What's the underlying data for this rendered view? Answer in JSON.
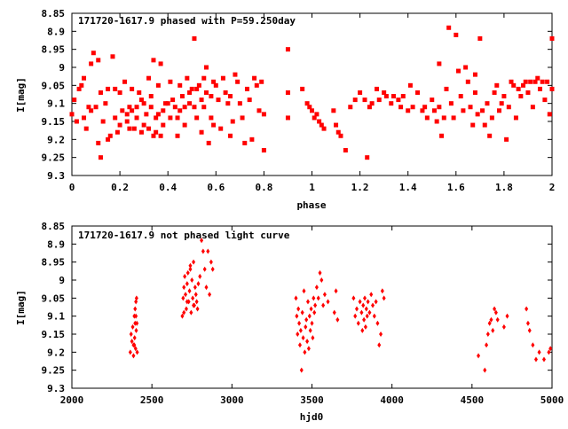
{
  "chart_data": [
    {
      "type": "scatter",
      "title": "171720-1617.9 phased with P=59.250day",
      "xlabel": "phase",
      "ylabel": "I[mag]",
      "xlim": [
        0,
        2
      ],
      "ylim": [
        8.85,
        9.3
      ],
      "y_inverted": true,
      "xticks": [
        "0",
        "0.2",
        "0.4",
        "0.6",
        "0.8",
        "1",
        "1.2",
        "1.4",
        "1.6",
        "1.8",
        "2"
      ],
      "yticks": [
        "8.85",
        "8.9",
        "8.95",
        "9",
        "9.05",
        "9.1",
        "9.15",
        "9.2",
        "9.25",
        "9.3"
      ],
      "marker_color": "#ff0000",
      "grid": false,
      "points": [
        [
          0.0,
          9.13
        ],
        [
          0.01,
          9.09
        ],
        [
          0.02,
          9.15
        ],
        [
          0.03,
          9.06
        ],
        [
          0.04,
          9.05
        ],
        [
          0.05,
          9.03
        ],
        [
          0.05,
          9.14
        ],
        [
          0.06,
          9.17
        ],
        [
          0.07,
          9.11
        ],
        [
          0.08,
          8.99
        ],
        [
          0.08,
          9.12
        ],
        [
          0.09,
          8.96
        ],
        [
          0.1,
          9.11
        ],
        [
          0.11,
          9.21
        ],
        [
          0.11,
          8.98
        ],
        [
          0.12,
          9.07
        ],
        [
          0.12,
          9.25
        ],
        [
          0.13,
          9.15
        ],
        [
          0.14,
          9.1
        ],
        [
          0.15,
          9.06
        ],
        [
          0.15,
          9.2
        ],
        [
          0.16,
          9.19
        ],
        [
          0.17,
          8.97
        ],
        [
          0.18,
          9.14
        ],
        [
          0.18,
          9.06
        ],
        [
          0.19,
          9.18
        ],
        [
          0.2,
          9.07
        ],
        [
          0.2,
          9.16
        ],
        [
          0.21,
          9.12
        ],
        [
          0.22,
          9.04
        ],
        [
          0.23,
          9.15
        ],
        [
          0.23,
          9.13
        ],
        [
          0.24,
          9.11
        ],
        [
          0.24,
          9.17
        ],
        [
          0.25,
          9.12
        ],
        [
          0.25,
          9.06
        ],
        [
          0.26,
          9.17
        ],
        [
          0.27,
          9.11
        ],
        [
          0.27,
          9.14
        ],
        [
          0.28,
          9.07
        ],
        [
          0.29,
          9.18
        ],
        [
          0.29,
          9.09
        ],
        [
          0.3,
          9.1
        ],
        [
          0.3,
          9.16
        ],
        [
          0.31,
          9.13
        ],
        [
          0.32,
          9.17
        ],
        [
          0.32,
          9.03
        ],
        [
          0.33,
          9.11
        ],
        [
          0.33,
          9.08
        ],
        [
          0.34,
          9.19
        ],
        [
          0.34,
          8.98
        ],
        [
          0.35,
          9.14
        ],
        [
          0.35,
          9.18
        ],
        [
          0.36,
          9.13
        ],
        [
          0.36,
          9.05
        ],
        [
          0.37,
          9.19
        ],
        [
          0.37,
          8.99
        ],
        [
          0.38,
          9.16
        ],
        [
          0.38,
          9.12
        ],
        [
          0.39,
          9.1
        ],
        [
          0.4,
          9.1
        ],
        [
          0.41,
          9.14
        ],
        [
          0.41,
          9.04
        ],
        [
          0.42,
          9.09
        ],
        [
          0.43,
          9.11
        ],
        [
          0.44,
          9.19
        ],
        [
          0.44,
          9.14
        ],
        [
          0.45,
          9.05
        ],
        [
          0.45,
          9.12
        ],
        [
          0.46,
          9.08
        ],
        [
          0.47,
          9.11
        ],
        [
          0.47,
          9.16
        ],
        [
          0.48,
          9.03
        ],
        [
          0.49,
          9.1
        ],
        [
          0.49,
          9.07
        ],
        [
          0.5,
          9.06
        ],
        [
          0.51,
          9.11
        ],
        [
          0.51,
          8.92
        ],
        [
          0.52,
          9.06
        ],
        [
          0.52,
          9.14
        ],
        [
          0.53,
          9.05
        ],
        [
          0.54,
          9.18
        ],
        [
          0.54,
          9.09
        ],
        [
          0.55,
          9.11
        ],
        [
          0.55,
          9.03
        ],
        [
          0.56,
          9.07
        ],
        [
          0.56,
          9.0
        ],
        [
          0.57,
          9.21
        ],
        [
          0.58,
          9.08
        ],
        [
          0.58,
          9.14
        ],
        [
          0.59,
          9.04
        ],
        [
          0.59,
          9.16
        ],
        [
          0.6,
          9.05
        ],
        [
          0.61,
          9.09
        ],
        [
          0.62,
          9.17
        ],
        [
          0.63,
          9.03
        ],
        [
          0.64,
          9.07
        ],
        [
          0.65,
          9.1
        ],
        [
          0.66,
          9.08
        ],
        [
          0.66,
          9.19
        ],
        [
          0.67,
          9.15
        ],
        [
          0.68,
          9.02
        ],
        [
          0.69,
          9.04
        ],
        [
          0.7,
          9.1
        ],
        [
          0.71,
          9.14
        ],
        [
          0.72,
          9.21
        ],
        [
          0.73,
          9.06
        ],
        [
          0.74,
          9.09
        ],
        [
          0.75,
          9.2
        ],
        [
          0.76,
          9.03
        ],
        [
          0.77,
          9.05
        ],
        [
          0.78,
          9.12
        ],
        [
          0.79,
          9.04
        ],
        [
          0.8,
          9.23
        ],
        [
          0.8,
          9.13
        ],
        [
          0.9,
          8.95
        ],
        [
          0.9,
          9.07
        ],
        [
          0.9,
          9.14
        ],
        [
          0.96,
          9.06
        ],
        [
          0.98,
          9.1
        ],
        [
          0.99,
          9.11
        ],
        [
          1.0,
          9.12
        ],
        [
          1.01,
          9.14
        ],
        [
          1.02,
          9.13
        ],
        [
          1.03,
          9.15
        ],
        [
          1.04,
          9.16
        ],
        [
          1.05,
          9.17
        ],
        [
          1.09,
          9.12
        ],
        [
          1.1,
          9.16
        ],
        [
          1.11,
          9.18
        ],
        [
          1.12,
          9.19
        ],
        [
          1.14,
          9.23
        ],
        [
          1.16,
          9.11
        ],
        [
          1.18,
          9.09
        ],
        [
          1.2,
          9.07
        ],
        [
          1.22,
          9.09
        ],
        [
          1.23,
          9.25
        ],
        [
          1.24,
          9.11
        ],
        [
          1.25,
          9.1
        ],
        [
          1.27,
          9.06
        ],
        [
          1.28,
          9.09
        ],
        [
          1.3,
          9.07
        ],
        [
          1.31,
          9.08
        ],
        [
          1.33,
          9.1
        ],
        [
          1.34,
          9.08
        ],
        [
          1.36,
          9.09
        ],
        [
          1.37,
          9.11
        ],
        [
          1.38,
          9.08
        ],
        [
          1.4,
          9.12
        ],
        [
          1.41,
          9.05
        ],
        [
          1.42,
          9.11
        ],
        [
          1.44,
          9.07
        ],
        [
          1.46,
          9.12
        ],
        [
          1.47,
          9.11
        ],
        [
          1.48,
          9.14
        ],
        [
          1.5,
          9.09
        ],
        [
          1.51,
          9.12
        ],
        [
          1.52,
          9.15
        ],
        [
          1.53,
          9.11
        ],
        [
          1.53,
          8.99
        ],
        [
          1.54,
          9.19
        ],
        [
          1.55,
          9.14
        ],
        [
          1.56,
          9.06
        ],
        [
          1.57,
          8.89
        ],
        [
          1.58,
          9.1
        ],
        [
          1.59,
          9.14
        ],
        [
          1.6,
          8.91
        ],
        [
          1.61,
          9.01
        ],
        [
          1.62,
          9.08
        ],
        [
          1.63,
          9.12
        ],
        [
          1.64,
          9.0
        ],
        [
          1.65,
          9.04
        ],
        [
          1.66,
          9.11
        ],
        [
          1.67,
          9.16
        ],
        [
          1.68,
          9.07
        ],
        [
          1.68,
          9.02
        ],
        [
          1.69,
          9.13
        ],
        [
          1.7,
          8.92
        ],
        [
          1.71,
          9.12
        ],
        [
          1.72,
          9.16
        ],
        [
          1.73,
          9.1
        ],
        [
          1.74,
          9.19
        ],
        [
          1.75,
          9.14
        ],
        [
          1.76,
          9.07
        ],
        [
          1.77,
          9.05
        ],
        [
          1.78,
          9.12
        ],
        [
          1.79,
          9.1
        ],
        [
          1.8,
          9.08
        ],
        [
          1.81,
          9.2
        ],
        [
          1.82,
          9.11
        ],
        [
          1.83,
          9.04
        ],
        [
          1.84,
          9.05
        ],
        [
          1.85,
          9.14
        ],
        [
          1.86,
          9.06
        ],
        [
          1.87,
          9.08
        ],
        [
          1.88,
          9.05
        ],
        [
          1.89,
          9.04
        ],
        [
          1.9,
          9.07
        ],
        [
          1.91,
          9.04
        ],
        [
          1.92,
          9.11
        ],
        [
          1.93,
          9.04
        ],
        [
          1.94,
          9.03
        ],
        [
          1.95,
          9.06
        ],
        [
          1.96,
          9.04
        ],
        [
          1.97,
          9.09
        ],
        [
          1.98,
          9.04
        ],
        [
          1.99,
          9.13
        ],
        [
          2.0,
          8.92
        ],
        [
          2.0,
          9.06
        ]
      ]
    },
    {
      "type": "scatter",
      "title": "171720-1617.9 not phased light curve",
      "xlabel": "hjd0",
      "ylabel": "I[mag]",
      "xlim": [
        2000,
        5000
      ],
      "ylim": [
        8.85,
        9.3
      ],
      "y_inverted": true,
      "xticks": [
        "2000",
        "2500",
        "3000",
        "3500",
        "4000",
        "4500",
        "5000"
      ],
      "yticks": [
        "8.85",
        "8.9",
        "8.95",
        "9",
        "9.05",
        "9.1",
        "9.15",
        "9.2",
        "9.25",
        "9.3"
      ],
      "marker_color": "#ff0000",
      "grid": false,
      "points": [
        [
          2365,
          9.2
        ],
        [
          2370,
          9.15
        ],
        [
          2375,
          9.17
        ],
        [
          2380,
          9.13
        ],
        [
          2385,
          9.18
        ],
        [
          2390,
          9.1
        ],
        [
          2392,
          9.16
        ],
        [
          2395,
          9.08
        ],
        [
          2398,
          9.19
        ],
        [
          2400,
          9.06
        ],
        [
          2402,
          9.14
        ],
        [
          2404,
          9.05
        ],
        [
          2406,
          9.12
        ],
        [
          2408,
          9.2
        ],
        [
          2385,
          9.21
        ],
        [
          2390,
          9.18
        ],
        [
          2395,
          9.12
        ],
        [
          2400,
          9.1
        ],
        [
          2690,
          9.1
        ],
        [
          2695,
          9.05
        ],
        [
          2700,
          9.02
        ],
        [
          2705,
          8.99
        ],
        [
          2710,
          9.04
        ],
        [
          2715,
          9.08
        ],
        [
          2720,
          9.01
        ],
        [
          2725,
          8.98
        ],
        [
          2730,
          9.06
        ],
        [
          2735,
          9.03
        ],
        [
          2740,
          8.96
        ],
        [
          2745,
          9.09
        ],
        [
          2750,
          9.0
        ],
        [
          2755,
          9.05
        ],
        [
          2760,
          8.95
        ],
        [
          2765,
          9.07
        ],
        [
          2770,
          9.02
        ],
        [
          2775,
          9.04
        ],
        [
          2780,
          9.06
        ],
        [
          2785,
          9.08
        ],
        [
          2790,
          9.01
        ],
        [
          2800,
          8.99
        ],
        [
          2810,
          8.89
        ],
        [
          2820,
          8.92
        ],
        [
          2830,
          8.97
        ],
        [
          2840,
          9.02
        ],
        [
          2850,
          8.92
        ],
        [
          2860,
          9.04
        ],
        [
          2870,
          8.95
        ],
        [
          2880,
          8.97
        ],
        [
          2700,
          9.09
        ],
        [
          2720,
          9.06
        ],
        [
          2740,
          8.97
        ],
        [
          2760,
          9.07
        ],
        [
          3400,
          9.05
        ],
        [
          3405,
          9.1
        ],
        [
          3410,
          9.15
        ],
        [
          3415,
          9.08
        ],
        [
          3420,
          9.12
        ],
        [
          3425,
          9.18
        ],
        [
          3430,
          9.14
        ],
        [
          3435,
          9.25
        ],
        [
          3440,
          9.09
        ],
        [
          3445,
          9.16
        ],
        [
          3450,
          9.03
        ],
        [
          3455,
          9.2
        ],
        [
          3460,
          9.13
        ],
        [
          3465,
          9.11
        ],
        [
          3470,
          9.17
        ],
        [
          3475,
          9.06
        ],
        [
          3480,
          9.19
        ],
        [
          3485,
          9.1
        ],
        [
          3490,
          9.14
        ],
        [
          3495,
          9.08
        ],
        [
          3500,
          9.12
        ],
        [
          3505,
          9.16
        ],
        [
          3510,
          9.05
        ],
        [
          3515,
          9.09
        ],
        [
          3520,
          9.07
        ],
        [
          3530,
          9.02
        ],
        [
          3540,
          9.05
        ],
        [
          3550,
          8.98
        ],
        [
          3560,
          9.0
        ],
        [
          3570,
          9.07
        ],
        [
          3580,
          9.04
        ],
        [
          3600,
          9.06
        ],
        [
          3640,
          9.09
        ],
        [
          3650,
          9.03
        ],
        [
          3660,
          9.11
        ],
        [
          3760,
          9.05
        ],
        [
          3770,
          9.1
        ],
        [
          3780,
          9.08
        ],
        [
          3790,
          9.12
        ],
        [
          3800,
          9.06
        ],
        [
          3810,
          9.09
        ],
        [
          3815,
          9.14
        ],
        [
          3820,
          9.07
        ],
        [
          3825,
          9.11
        ],
        [
          3830,
          9.05
        ],
        [
          3835,
          9.13
        ],
        [
          3840,
          9.08
        ],
        [
          3845,
          9.1
        ],
        [
          3850,
          9.06
        ],
        [
          3860,
          9.09
        ],
        [
          3870,
          9.04
        ],
        [
          3880,
          9.07
        ],
        [
          3890,
          9.1
        ],
        [
          3900,
          9.06
        ],
        [
          3910,
          9.12
        ],
        [
          3920,
          9.18
        ],
        [
          3930,
          9.15
        ],
        [
          3940,
          9.03
        ],
        [
          3950,
          9.05
        ],
        [
          4540,
          9.21
        ],
        [
          4580,
          9.25
        ],
        [
          4590,
          9.18
        ],
        [
          4600,
          9.15
        ],
        [
          4610,
          9.12
        ],
        [
          4620,
          9.11
        ],
        [
          4630,
          9.14
        ],
        [
          4640,
          9.08
        ],
        [
          4650,
          9.09
        ],
        [
          4660,
          9.11
        ],
        [
          4700,
          9.13
        ],
        [
          4720,
          9.1
        ],
        [
          4840,
          9.08
        ],
        [
          4850,
          9.12
        ],
        [
          4860,
          9.14
        ],
        [
          4880,
          9.18
        ],
        [
          4900,
          9.22
        ],
        [
          4920,
          9.2
        ],
        [
          4950,
          9.22
        ],
        [
          4980,
          9.2
        ],
        [
          4990,
          9.19
        ]
      ]
    }
  ]
}
